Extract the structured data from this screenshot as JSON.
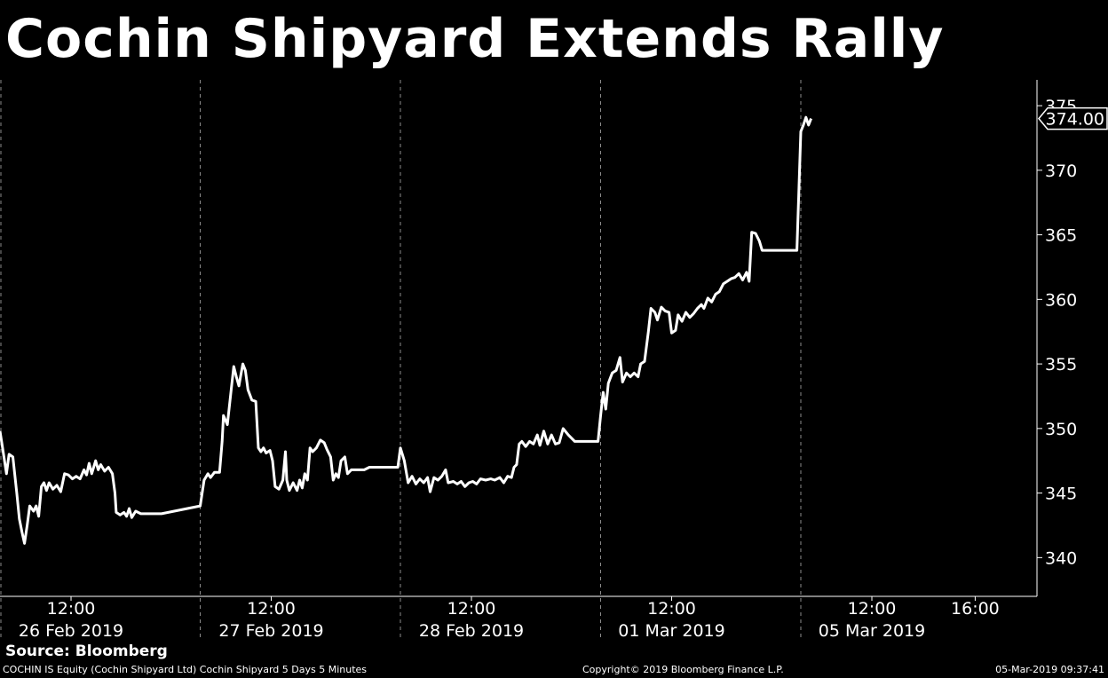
{
  "header": {
    "title": "Cochin Shipyard Extends Rally"
  },
  "footer": {
    "source": "Source: Bloomberg",
    "description": "COCHIN IS Equity (Cochin Shipyard Ltd) Cochin Shipyard 5 Days 5 Minutes",
    "copyright": "Copyright© 2019 Bloomberg Finance L.P.",
    "timestamp": "05-Mar-2019 09:37:41"
  },
  "colors": {
    "background": "#000000",
    "line": "#ffffff",
    "grid": "#8c8c8c"
  },
  "chart_data": {
    "type": "line",
    "title": "Cochin Shipyard Extends Rally",
    "xlabel": "",
    "ylabel": "",
    "grid": "vertical dashed separators between trading days",
    "ylim": [
      337,
      377
    ],
    "yticks": [
      340,
      345,
      350,
      355,
      360,
      365,
      370,
      375
    ],
    "ytick_labels": [
      "340",
      "345",
      "350",
      "355",
      "360",
      "365",
      "370",
      "375"
    ],
    "last_value_label": "374.00",
    "days": [
      {
        "time": "12:00",
        "date": "26 Feb 2019"
      },
      {
        "time": "12:00",
        "date": "27 Feb 2019"
      },
      {
        "time": "12:00",
        "date": "28 Feb 2019"
      },
      {
        "time": "12:00",
        "date": "01 Mar 2019"
      },
      {
        "time": "12:00",
        "date": "05 Mar 2019"
      }
    ],
    "extra_xtick": {
      "label": "16:00",
      "day": 4,
      "hour": 16
    },
    "session_start_hour": 9.25,
    "session_end_hour": 17,
    "series": [
      {
        "values": [
          [
            0,
            9.25,
            349.8
          ],
          [
            0,
            9.35,
            348.5
          ],
          [
            0,
            9.5,
            346.5
          ],
          [
            0,
            9.6,
            348
          ],
          [
            0,
            9.75,
            347.8
          ],
          [
            0,
            9.9,
            345
          ],
          [
            0,
            10.0,
            343
          ],
          [
            0,
            10.1,
            342
          ],
          [
            0,
            10.2,
            341.1
          ],
          [
            0,
            10.3,
            342.5
          ],
          [
            0,
            10.4,
            344
          ],
          [
            0,
            10.55,
            343.6
          ],
          [
            0,
            10.65,
            344
          ],
          [
            0,
            10.75,
            343.2
          ],
          [
            0,
            10.85,
            345.5
          ],
          [
            0,
            10.95,
            345.8
          ],
          [
            0,
            11.05,
            345.2
          ],
          [
            0,
            11.15,
            345.8
          ],
          [
            0,
            11.3,
            345.3
          ],
          [
            0,
            11.45,
            345.6
          ],
          [
            0,
            11.6,
            345.1
          ],
          [
            0,
            11.75,
            346.5
          ],
          [
            0,
            11.9,
            346.4
          ],
          [
            0,
            12.05,
            346.1
          ],
          [
            0,
            12.2,
            346.3
          ],
          [
            0,
            12.35,
            346.1
          ],
          [
            0,
            12.5,
            346.8
          ],
          [
            0,
            12.6,
            346.4
          ],
          [
            0,
            12.7,
            347.3
          ],
          [
            0,
            12.8,
            346.5
          ],
          [
            0,
            12.95,
            347.5
          ],
          [
            0,
            13.05,
            346.8
          ],
          [
            0,
            13.15,
            347.2
          ],
          [
            0,
            13.3,
            346.7
          ],
          [
            0,
            13.45,
            347.0
          ],
          [
            0,
            13.6,
            346.5
          ],
          [
            0,
            13.7,
            345
          ],
          [
            0,
            13.75,
            343.5
          ],
          [
            0,
            13.9,
            343.3
          ],
          [
            0,
            14.05,
            343.5
          ],
          [
            0,
            14.15,
            343.2
          ],
          [
            0,
            14.25,
            343.8
          ],
          [
            0,
            14.35,
            343.1
          ],
          [
            0,
            14.5,
            343.6
          ],
          [
            0,
            14.7,
            343.4
          ],
          [
            0,
            15.0,
            343.4
          ],
          [
            0,
            15.3,
            343.4
          ],
          [
            0,
            15.5,
            343.4
          ],
          [
            1,
            9.25,
            344
          ],
          [
            1,
            9.4,
            346
          ],
          [
            1,
            9.55,
            346.5
          ],
          [
            1,
            9.65,
            346.2
          ],
          [
            1,
            9.8,
            346.6
          ],
          [
            1,
            10.0,
            346.6
          ],
          [
            1,
            10.1,
            349
          ],
          [
            1,
            10.15,
            351
          ],
          [
            1,
            10.3,
            350.3
          ],
          [
            1,
            10.45,
            353
          ],
          [
            1,
            10.55,
            354.8
          ],
          [
            1,
            10.65,
            354
          ],
          [
            1,
            10.75,
            353.3
          ],
          [
            1,
            10.9,
            355
          ],
          [
            1,
            11.0,
            354.5
          ],
          [
            1,
            11.1,
            353
          ],
          [
            1,
            11.25,
            352.2
          ],
          [
            1,
            11.4,
            352.1
          ],
          [
            1,
            11.5,
            348.5
          ],
          [
            1,
            11.6,
            348.2
          ],
          [
            1,
            11.7,
            348.5
          ],
          [
            1,
            11.8,
            348.1
          ],
          [
            1,
            11.95,
            348.3
          ],
          [
            1,
            12.05,
            347.5
          ],
          [
            1,
            12.15,
            345.5
          ],
          [
            1,
            12.3,
            345.3
          ],
          [
            1,
            12.45,
            346
          ],
          [
            1,
            12.55,
            348.2
          ],
          [
            1,
            12.6,
            346
          ],
          [
            1,
            12.7,
            345.2
          ],
          [
            1,
            12.85,
            345.8
          ],
          [
            1,
            13.0,
            345.2
          ],
          [
            1,
            13.1,
            346
          ],
          [
            1,
            13.2,
            345.4
          ],
          [
            1,
            13.3,
            346.5
          ],
          [
            1,
            13.4,
            346
          ],
          [
            1,
            13.5,
            348.5
          ],
          [
            1,
            13.6,
            348.2
          ],
          [
            1,
            13.75,
            348.5
          ],
          [
            1,
            13.9,
            349.1
          ],
          [
            1,
            14.05,
            348.9
          ],
          [
            1,
            14.15,
            348.4
          ],
          [
            1,
            14.3,
            347.8
          ],
          [
            1,
            14.4,
            346
          ],
          [
            1,
            14.5,
            346.5
          ],
          [
            1,
            14.6,
            346.2
          ],
          [
            1,
            14.7,
            347.5
          ],
          [
            1,
            14.85,
            347.8
          ],
          [
            1,
            14.95,
            346.5
          ],
          [
            1,
            15.1,
            346.8
          ],
          [
            1,
            15.3,
            346.8
          ],
          [
            1,
            15.6,
            346.8
          ],
          [
            1,
            15.8,
            347
          ],
          [
            1,
            16.1,
            347
          ],
          [
            1,
            16.5,
            347
          ],
          [
            1,
            16.9,
            347
          ],
          [
            2,
            9.25,
            348.5
          ],
          [
            2,
            9.4,
            347.5
          ],
          [
            2,
            9.55,
            345.8
          ],
          [
            2,
            9.7,
            346.3
          ],
          [
            2,
            9.85,
            345.7
          ],
          [
            2,
            10.0,
            346.1
          ],
          [
            2,
            10.15,
            345.8
          ],
          [
            2,
            10.3,
            346.2
          ],
          [
            2,
            10.4,
            345.1
          ],
          [
            2,
            10.55,
            346.2
          ],
          [
            2,
            10.7,
            346
          ],
          [
            2,
            10.85,
            346.3
          ],
          [
            2,
            11.0,
            346.8
          ],
          [
            2,
            11.1,
            345.8
          ],
          [
            2,
            11.3,
            345.9
          ],
          [
            2,
            11.45,
            345.7
          ],
          [
            2,
            11.6,
            345.9
          ],
          [
            2,
            11.75,
            345.5
          ],
          [
            2,
            11.9,
            345.8
          ],
          [
            2,
            12.05,
            345.9
          ],
          [
            2,
            12.2,
            345.7
          ],
          [
            2,
            12.35,
            346.1
          ],
          [
            2,
            12.55,
            346.0
          ],
          [
            2,
            12.75,
            346.1
          ],
          [
            2,
            12.9,
            346.0
          ],
          [
            2,
            13.1,
            346.2
          ],
          [
            2,
            13.25,
            345.8
          ],
          [
            2,
            13.4,
            346.3
          ],
          [
            2,
            13.55,
            346.2
          ],
          [
            2,
            13.65,
            347
          ],
          [
            2,
            13.75,
            347.2
          ],
          [
            2,
            13.85,
            348.8
          ],
          [
            2,
            13.95,
            349
          ],
          [
            2,
            14.1,
            348.6
          ],
          [
            2,
            14.25,
            349
          ],
          [
            2,
            14.4,
            348.8
          ],
          [
            2,
            14.55,
            349.5
          ],
          [
            2,
            14.65,
            348.7
          ],
          [
            2,
            14.8,
            349.8
          ],
          [
            2,
            14.95,
            348.8
          ],
          [
            2,
            15.1,
            349.5
          ],
          [
            2,
            15.25,
            348.8
          ],
          [
            2,
            15.4,
            348.9
          ],
          [
            2,
            15.55,
            350
          ],
          [
            2,
            15.75,
            349.5
          ],
          [
            2,
            16.0,
            349.0
          ],
          [
            2,
            16.4,
            349.0
          ],
          [
            2,
            16.9,
            349.0
          ],
          [
            3,
            9.25,
            351
          ],
          [
            3,
            9.35,
            352.8
          ],
          [
            3,
            9.45,
            351.5
          ],
          [
            3,
            9.55,
            353.5
          ],
          [
            3,
            9.7,
            354.3
          ],
          [
            3,
            9.85,
            354.5
          ],
          [
            3,
            10.0,
            355.5
          ],
          [
            3,
            10.1,
            353.6
          ],
          [
            3,
            10.25,
            354.3
          ],
          [
            3,
            10.4,
            354
          ],
          [
            3,
            10.55,
            354.3
          ],
          [
            3,
            10.7,
            354
          ],
          [
            3,
            10.8,
            355
          ],
          [
            3,
            10.95,
            355.2
          ],
          [
            3,
            11.1,
            357.5
          ],
          [
            3,
            11.2,
            359.3
          ],
          [
            3,
            11.35,
            359
          ],
          [
            3,
            11.45,
            358.4
          ],
          [
            3,
            11.6,
            359.4
          ],
          [
            3,
            11.75,
            359.1
          ],
          [
            3,
            11.9,
            359.0
          ],
          [
            3,
            12.0,
            357.4
          ],
          [
            3,
            12.15,
            357.6
          ],
          [
            3,
            12.25,
            358.8
          ],
          [
            3,
            12.4,
            358.3
          ],
          [
            3,
            12.55,
            359
          ],
          [
            3,
            12.7,
            358.6
          ],
          [
            3,
            12.85,
            358.9
          ],
          [
            3,
            13.0,
            359.3
          ],
          [
            3,
            13.15,
            359.6
          ],
          [
            3,
            13.25,
            359.3
          ],
          [
            3,
            13.4,
            360.1
          ],
          [
            3,
            13.55,
            359.8
          ],
          [
            3,
            13.7,
            360.4
          ],
          [
            3,
            13.85,
            360.6
          ],
          [
            3,
            14.0,
            361.2
          ],
          [
            3,
            14.15,
            361.4
          ],
          [
            3,
            14.3,
            361.6
          ],
          [
            3,
            14.45,
            361.7
          ],
          [
            3,
            14.6,
            362.0
          ],
          [
            3,
            14.75,
            361.5
          ],
          [
            3,
            14.9,
            362.1
          ],
          [
            3,
            15.0,
            361.4
          ],
          [
            3,
            15.1,
            365.2
          ],
          [
            3,
            15.25,
            365.1
          ],
          [
            3,
            15.4,
            364.5
          ],
          [
            3,
            15.5,
            363.8
          ],
          [
            3,
            15.8,
            363.8
          ],
          [
            3,
            16.1,
            363.8
          ],
          [
            3,
            16.4,
            363.8
          ],
          [
            3,
            16.6,
            363.8
          ],
          [
            3,
            16.85,
            363.8
          ],
          [
            4,
            9.25,
            373
          ],
          [
            4,
            9.35,
            373.5
          ],
          [
            4,
            9.45,
            374.1
          ],
          [
            4,
            9.55,
            373.5
          ],
          [
            4,
            9.65,
            374
          ]
        ]
      }
    ]
  }
}
